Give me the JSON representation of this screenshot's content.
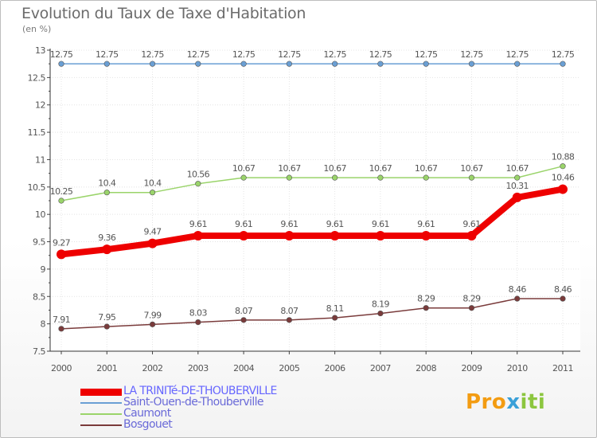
{
  "chart_data": {
    "type": "line",
    "title": "Evolution du Taux de Taxe d'Habitation",
    "ylabel": "(en %)",
    "xlabel": "",
    "x": [
      "2000",
      "2001",
      "2002",
      "2003",
      "2004",
      "2005",
      "2006",
      "2007",
      "2008",
      "2009",
      "2010",
      "2011"
    ],
    "ylim": [
      7.5,
      13
    ],
    "yticks": [
      "7.5",
      "8",
      "8.5",
      "9",
      "9.5",
      "10",
      "10.5",
      "11",
      "11.5",
      "12",
      "12.5",
      "13"
    ],
    "legend_position": "bottom-left",
    "series": [
      {
        "name": "LA TRINITé-DE-THOUBERVILLE",
        "color": "#ee0000",
        "emphasis": true,
        "values": [
          9.27,
          9.36,
          9.47,
          9.61,
          9.61,
          9.61,
          9.61,
          9.61,
          9.61,
          9.61,
          10.31,
          10.46
        ],
        "labels": [
          "9.27",
          "9.36",
          "9.47",
          "9.61",
          "9.61",
          "9.61",
          "9.61",
          "9.61",
          "9.61",
          "9.61",
          "10.31",
          "10.46"
        ]
      },
      {
        "name": "Saint-Ouen-de-Thouberville",
        "color": "#6a9fd4",
        "emphasis": false,
        "values": [
          12.75,
          12.75,
          12.75,
          12.75,
          12.75,
          12.75,
          12.75,
          12.75,
          12.75,
          12.75,
          12.75,
          12.75
        ],
        "labels": [
          "12.75",
          "12.75",
          "12.75",
          "12.75",
          "12.75",
          "12.75",
          "12.75",
          "12.75",
          "12.75",
          "12.75",
          "12.75",
          "12.75"
        ]
      },
      {
        "name": "Caumont",
        "color": "#9ad46a",
        "emphasis": false,
        "values": [
          10.25,
          10.4,
          10.4,
          10.56,
          10.67,
          10.67,
          10.67,
          10.67,
          10.67,
          10.67,
          10.67,
          10.88
        ],
        "labels": [
          "10.25",
          "10.4",
          "10.4",
          "10.56",
          "10.67",
          "10.67",
          "10.67",
          "10.67",
          "10.67",
          "10.67",
          "10.67",
          "10.88"
        ]
      },
      {
        "name": "Bosgouet",
        "color": "#7a3b3b",
        "emphasis": false,
        "values": [
          7.91,
          7.95,
          7.99,
          8.03,
          8.07,
          8.07,
          8.11,
          8.19,
          8.29,
          8.29,
          8.46,
          8.46
        ],
        "labels": [
          "7.91",
          "7.95",
          "7.99",
          "8.03",
          "8.07",
          "8.07",
          "8.11",
          "8.19",
          "8.29",
          "8.29",
          "8.46",
          "8.46"
        ]
      }
    ]
  },
  "brand": {
    "p1": "Pro",
    "p2": "x",
    "p3": "iti"
  }
}
